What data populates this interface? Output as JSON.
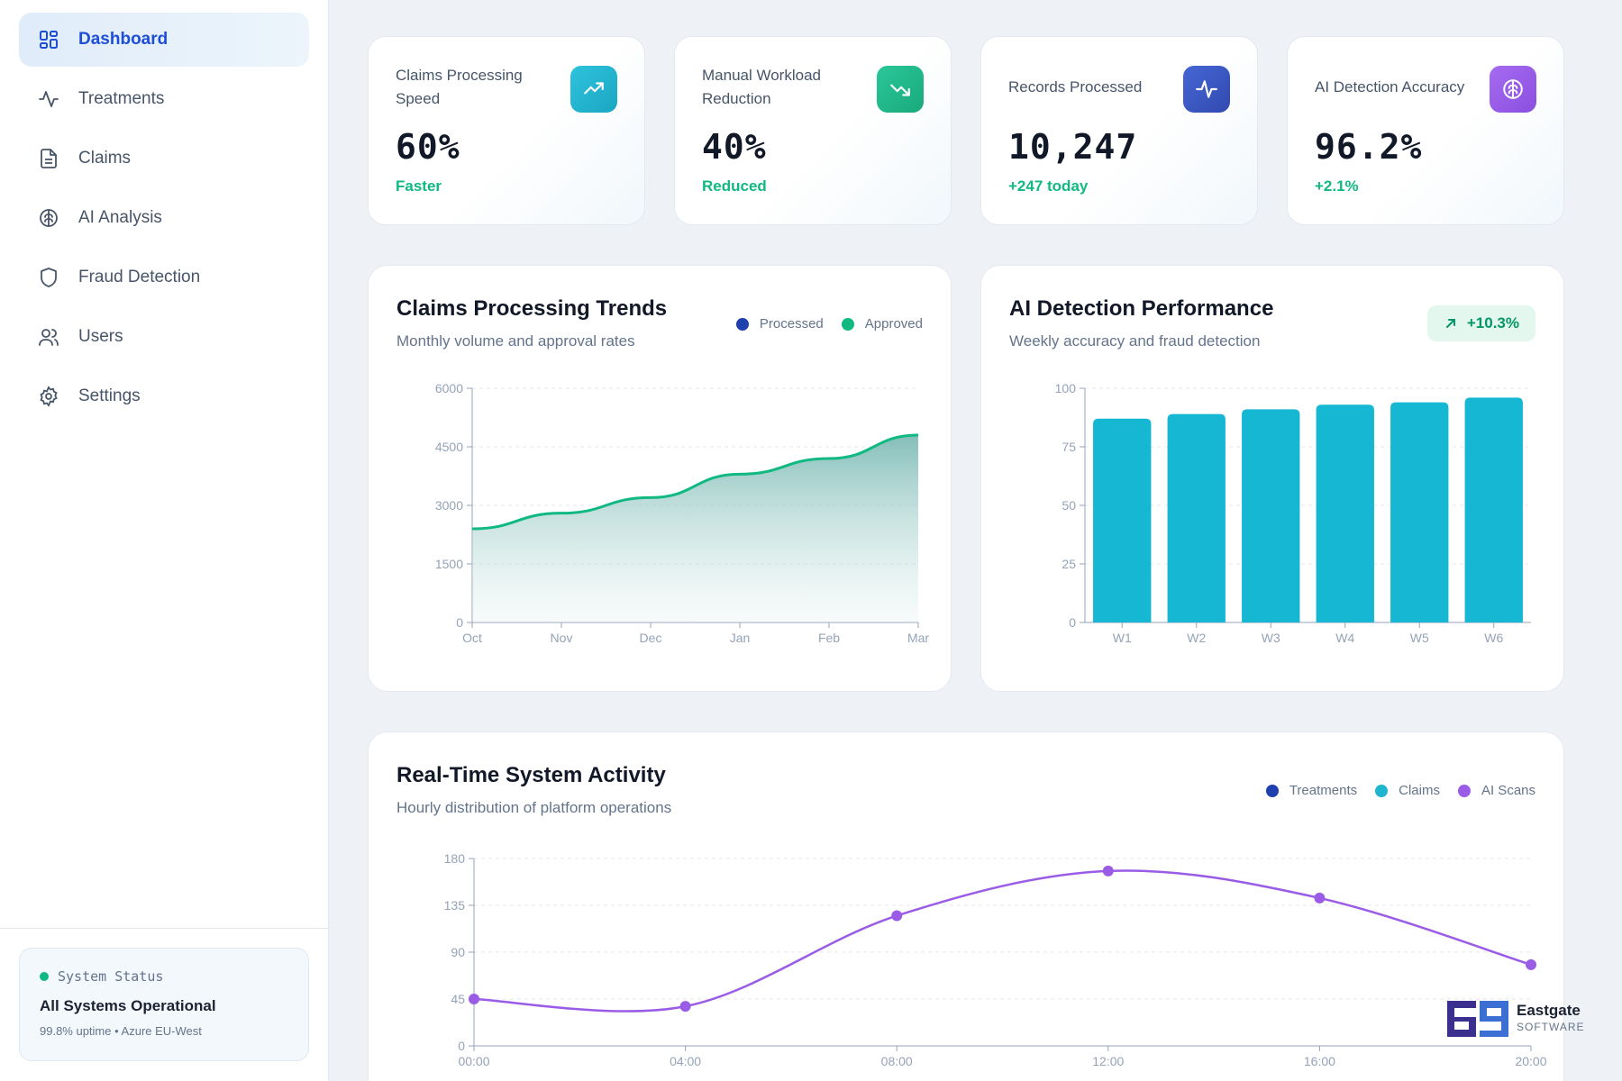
{
  "sidebar": {
    "items": [
      {
        "label": "Dashboard",
        "icon": "dashboard-icon"
      },
      {
        "label": "Treatments",
        "icon": "activity-icon"
      },
      {
        "label": "Claims",
        "icon": "document-icon"
      },
      {
        "label": "AI Analysis",
        "icon": "brain-icon"
      },
      {
        "label": "Fraud Detection",
        "icon": "shield-icon"
      },
      {
        "label": "Users",
        "icon": "users-icon"
      },
      {
        "label": "Settings",
        "icon": "gear-icon"
      }
    ],
    "active_index": 0,
    "status": {
      "heading": "System Status",
      "title": "All Systems Operational",
      "detail": "99.8% uptime • Azure EU-West"
    }
  },
  "stats": [
    {
      "label": "Claims Processing Speed",
      "value": "60%",
      "change": "Faster",
      "icon": "trending-up-icon",
      "color": "#1fb5cf"
    },
    {
      "label": "Manual Workload Reduction",
      "value": "40%",
      "change": "Reduced",
      "icon": "trending-down-icon",
      "color": "#1fb585"
    },
    {
      "label": "Records Processed",
      "value": "10,247",
      "change": "+247 today",
      "icon": "pulse-icon",
      "color": "#3a5bc7"
    },
    {
      "label": "AI Detection Accuracy",
      "value": "96.2%",
      "change": "+2.1%",
      "icon": "brain-icon",
      "color": "#9a5ce6"
    }
  ],
  "claims_panel": {
    "title": "Claims Processing Trends",
    "subtitle": "Monthly volume and approval rates",
    "legend": [
      {
        "name": "Processed",
        "color": "#1e40af"
      },
      {
        "name": "Approved",
        "color": "#10b981"
      }
    ]
  },
  "ai_panel": {
    "title": "AI Detection Performance",
    "subtitle": "Weekly accuracy and fraud detection",
    "badge": "+10.3%"
  },
  "activity_panel": {
    "title": "Real-Time System Activity",
    "subtitle": "Hourly distribution of platform operations",
    "legend": [
      {
        "name": "Treatments",
        "color": "#1e40af"
      },
      {
        "name": "Claims",
        "color": "#1fb5cf"
      },
      {
        "name": "AI Scans",
        "color": "#9a5ce6"
      }
    ]
  },
  "logo": {
    "name": "Eastgate",
    "sub": "SOFTWARE"
  },
  "chart_data": [
    {
      "type": "area",
      "title": "Claims Processing Trends",
      "categories": [
        "Oct",
        "Nov",
        "Dec",
        "Jan",
        "Feb",
        "Mar"
      ],
      "series": [
        {
          "name": "Approved",
          "values": [
            2400,
            2800,
            3200,
            3800,
            4200,
            4800
          ]
        }
      ],
      "ylim": [
        0,
        6000
      ],
      "yticks": [
        0,
        1500,
        3000,
        4500,
        6000
      ],
      "grid": true,
      "legend": "top-right"
    },
    {
      "type": "bar",
      "title": "AI Detection Performance",
      "categories": [
        "W1",
        "W2",
        "W3",
        "W4",
        "W5",
        "W6"
      ],
      "values": [
        87,
        89,
        91,
        93,
        94,
        96
      ],
      "ylim": [
        0,
        100
      ],
      "yticks": [
        0,
        25,
        50,
        75,
        100
      ],
      "grid": true
    },
    {
      "type": "line",
      "title": "Real-Time System Activity",
      "categories": [
        "00:00",
        "04:00",
        "08:00",
        "12:00",
        "16:00",
        "20:00"
      ],
      "series": [
        {
          "name": "AI Scans",
          "values": [
            45,
            38,
            125,
            168,
            142,
            78
          ]
        }
      ],
      "ylim": [
        0,
        180
      ],
      "yticks": [
        0,
        45,
        90,
        135,
        180
      ],
      "grid": true,
      "legend": "top-right"
    }
  ]
}
